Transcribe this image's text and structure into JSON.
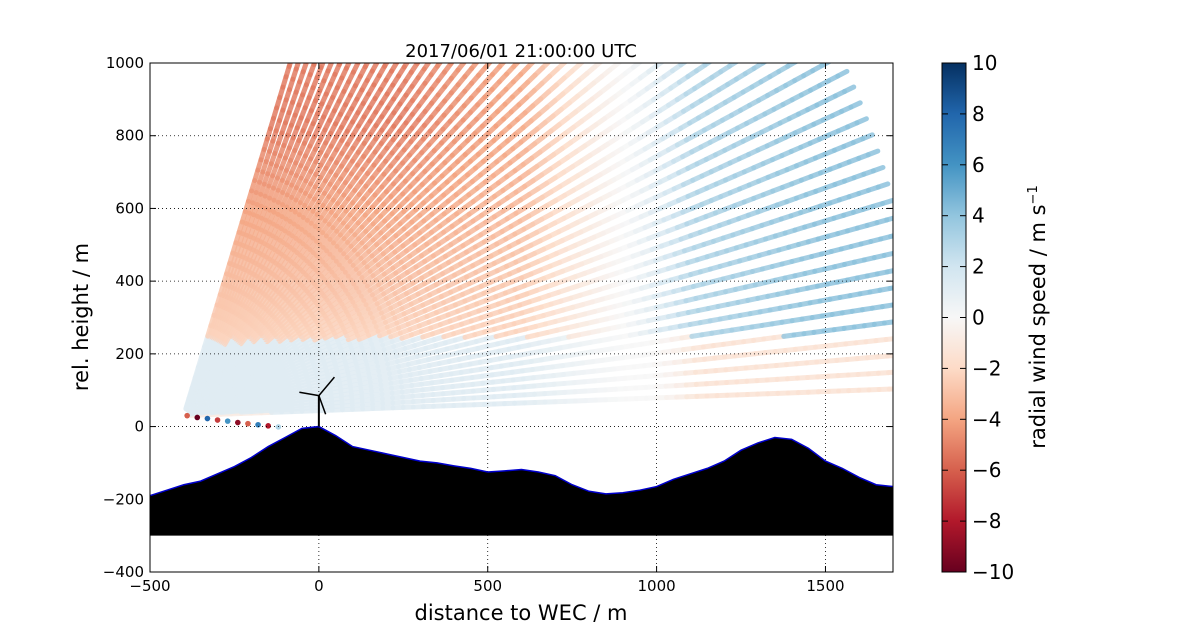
{
  "chart_data": {
    "type": "heatmap",
    "title": "2017/06/01 21:00:00 UTC",
    "xlabel": "distance to WEC / m",
    "ylabel": "rel. height / m",
    "xlim": [
      -500,
      1700
    ],
    "ylim": [
      -400,
      1000
    ],
    "xticks": [
      -500,
      0,
      500,
      1000,
      1500
    ],
    "yticks": [
      -400,
      -200,
      0,
      200,
      400,
      600,
      800,
      1000
    ],
    "grid": true,
    "colorbar": {
      "label_main": "radial wind speed / m s",
      "label_sup": "−1",
      "range": [
        -10,
        10
      ],
      "ticks": [
        10,
        8,
        6,
        4,
        2,
        0,
        -2,
        -4,
        -6,
        -8,
        -10
      ],
      "colormap": "RdBu",
      "colors_low_to_high": [
        "#67001f",
        "#b2182b",
        "#d6604d",
        "#f4a582",
        "#fddbc7",
        "#f7f7f7",
        "#d1e5f0",
        "#92c5de",
        "#4393c3",
        "#2166ac",
        "#053061"
      ]
    },
    "lidar_scan": {
      "origin": [
        -400,
        30
      ],
      "fill_rule": "red-orange aloft in the upwind sector, blue in the downwind sector, light blue band near 100 m"
    },
    "terrain": {
      "color": "#000000",
      "outline_color": "#0000cc",
      "base": -300,
      "profile_x": [
        -500,
        -450,
        -400,
        -350,
        -300,
        -250,
        -200,
        -150,
        -100,
        -50,
        0,
        50,
        100,
        150,
        200,
        250,
        300,
        350,
        400,
        450,
        500,
        550,
        600,
        650,
        700,
        750,
        800,
        850,
        900,
        950,
        1000,
        1050,
        1100,
        1150,
        1200,
        1250,
        1300,
        1350,
        1400,
        1450,
        1500,
        1550,
        1600,
        1650,
        1700
      ],
      "profile_y": [
        -190,
        -175,
        -160,
        -150,
        -130,
        -110,
        -85,
        -55,
        -30,
        -5,
        0,
        -25,
        -55,
        -65,
        -75,
        -85,
        -95,
        -100,
        -108,
        -115,
        -125,
        -122,
        -118,
        -125,
        -135,
        -160,
        -178,
        -185,
        -182,
        -175,
        -165,
        -145,
        -130,
        -115,
        -95,
        -65,
        -45,
        -30,
        -35,
        -60,
        -95,
        -115,
        -140,
        -160,
        -165
      ]
    },
    "turbine": {
      "x": 0,
      "hub_height": 85
    }
  }
}
